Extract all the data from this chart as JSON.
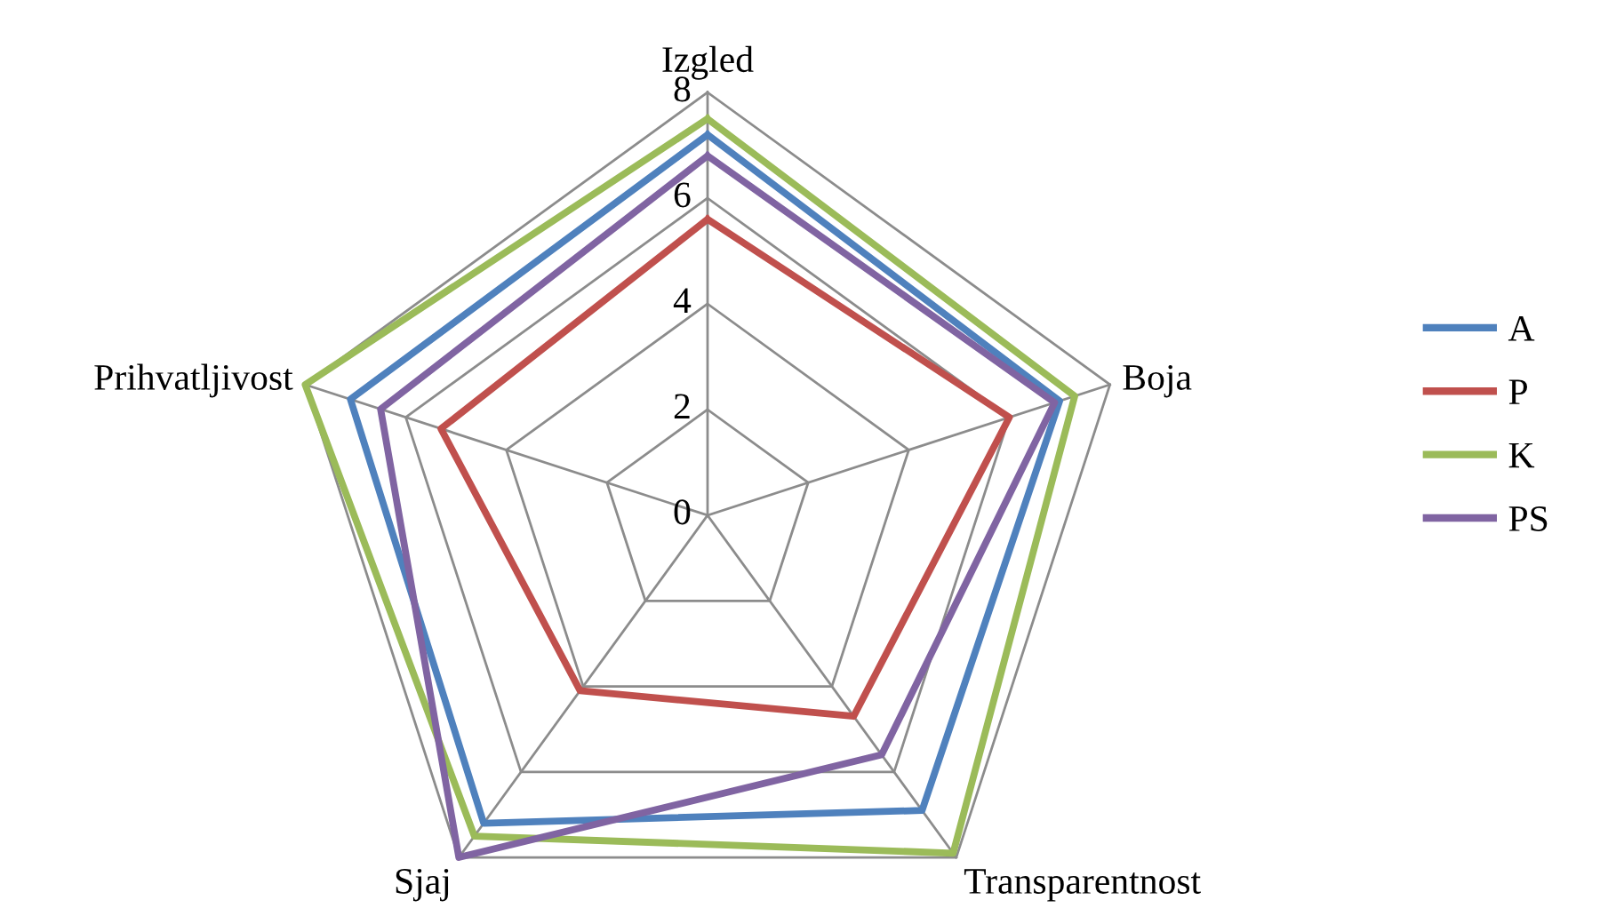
{
  "chart_data": {
    "type": "radar",
    "categories": [
      "Izgled",
      "Boja",
      "Transparentnost",
      "Sjaj",
      "Prihvatljivost"
    ],
    "ylim": [
      0,
      8
    ],
    "yticks": [
      0,
      2,
      4,
      6,
      8
    ],
    "grid": true,
    "legend": "right",
    "series": [
      {
        "name": "A",
        "color": "#4f81bd",
        "values": [
          7.2,
          7.0,
          6.9,
          7.2,
          7.1
        ]
      },
      {
        "name": "P",
        "color": "#c0504d",
        "values": [
          5.6,
          6.0,
          4.7,
          4.1,
          5.3
        ]
      },
      {
        "name": "K",
        "color": "#9bbb59",
        "values": [
          7.5,
          7.3,
          7.9,
          7.5,
          8.0
        ]
      },
      {
        "name": "PS",
        "color": "#8064a2",
        "values": [
          6.8,
          6.9,
          5.6,
          8.0,
          6.5
        ]
      }
    ]
  }
}
